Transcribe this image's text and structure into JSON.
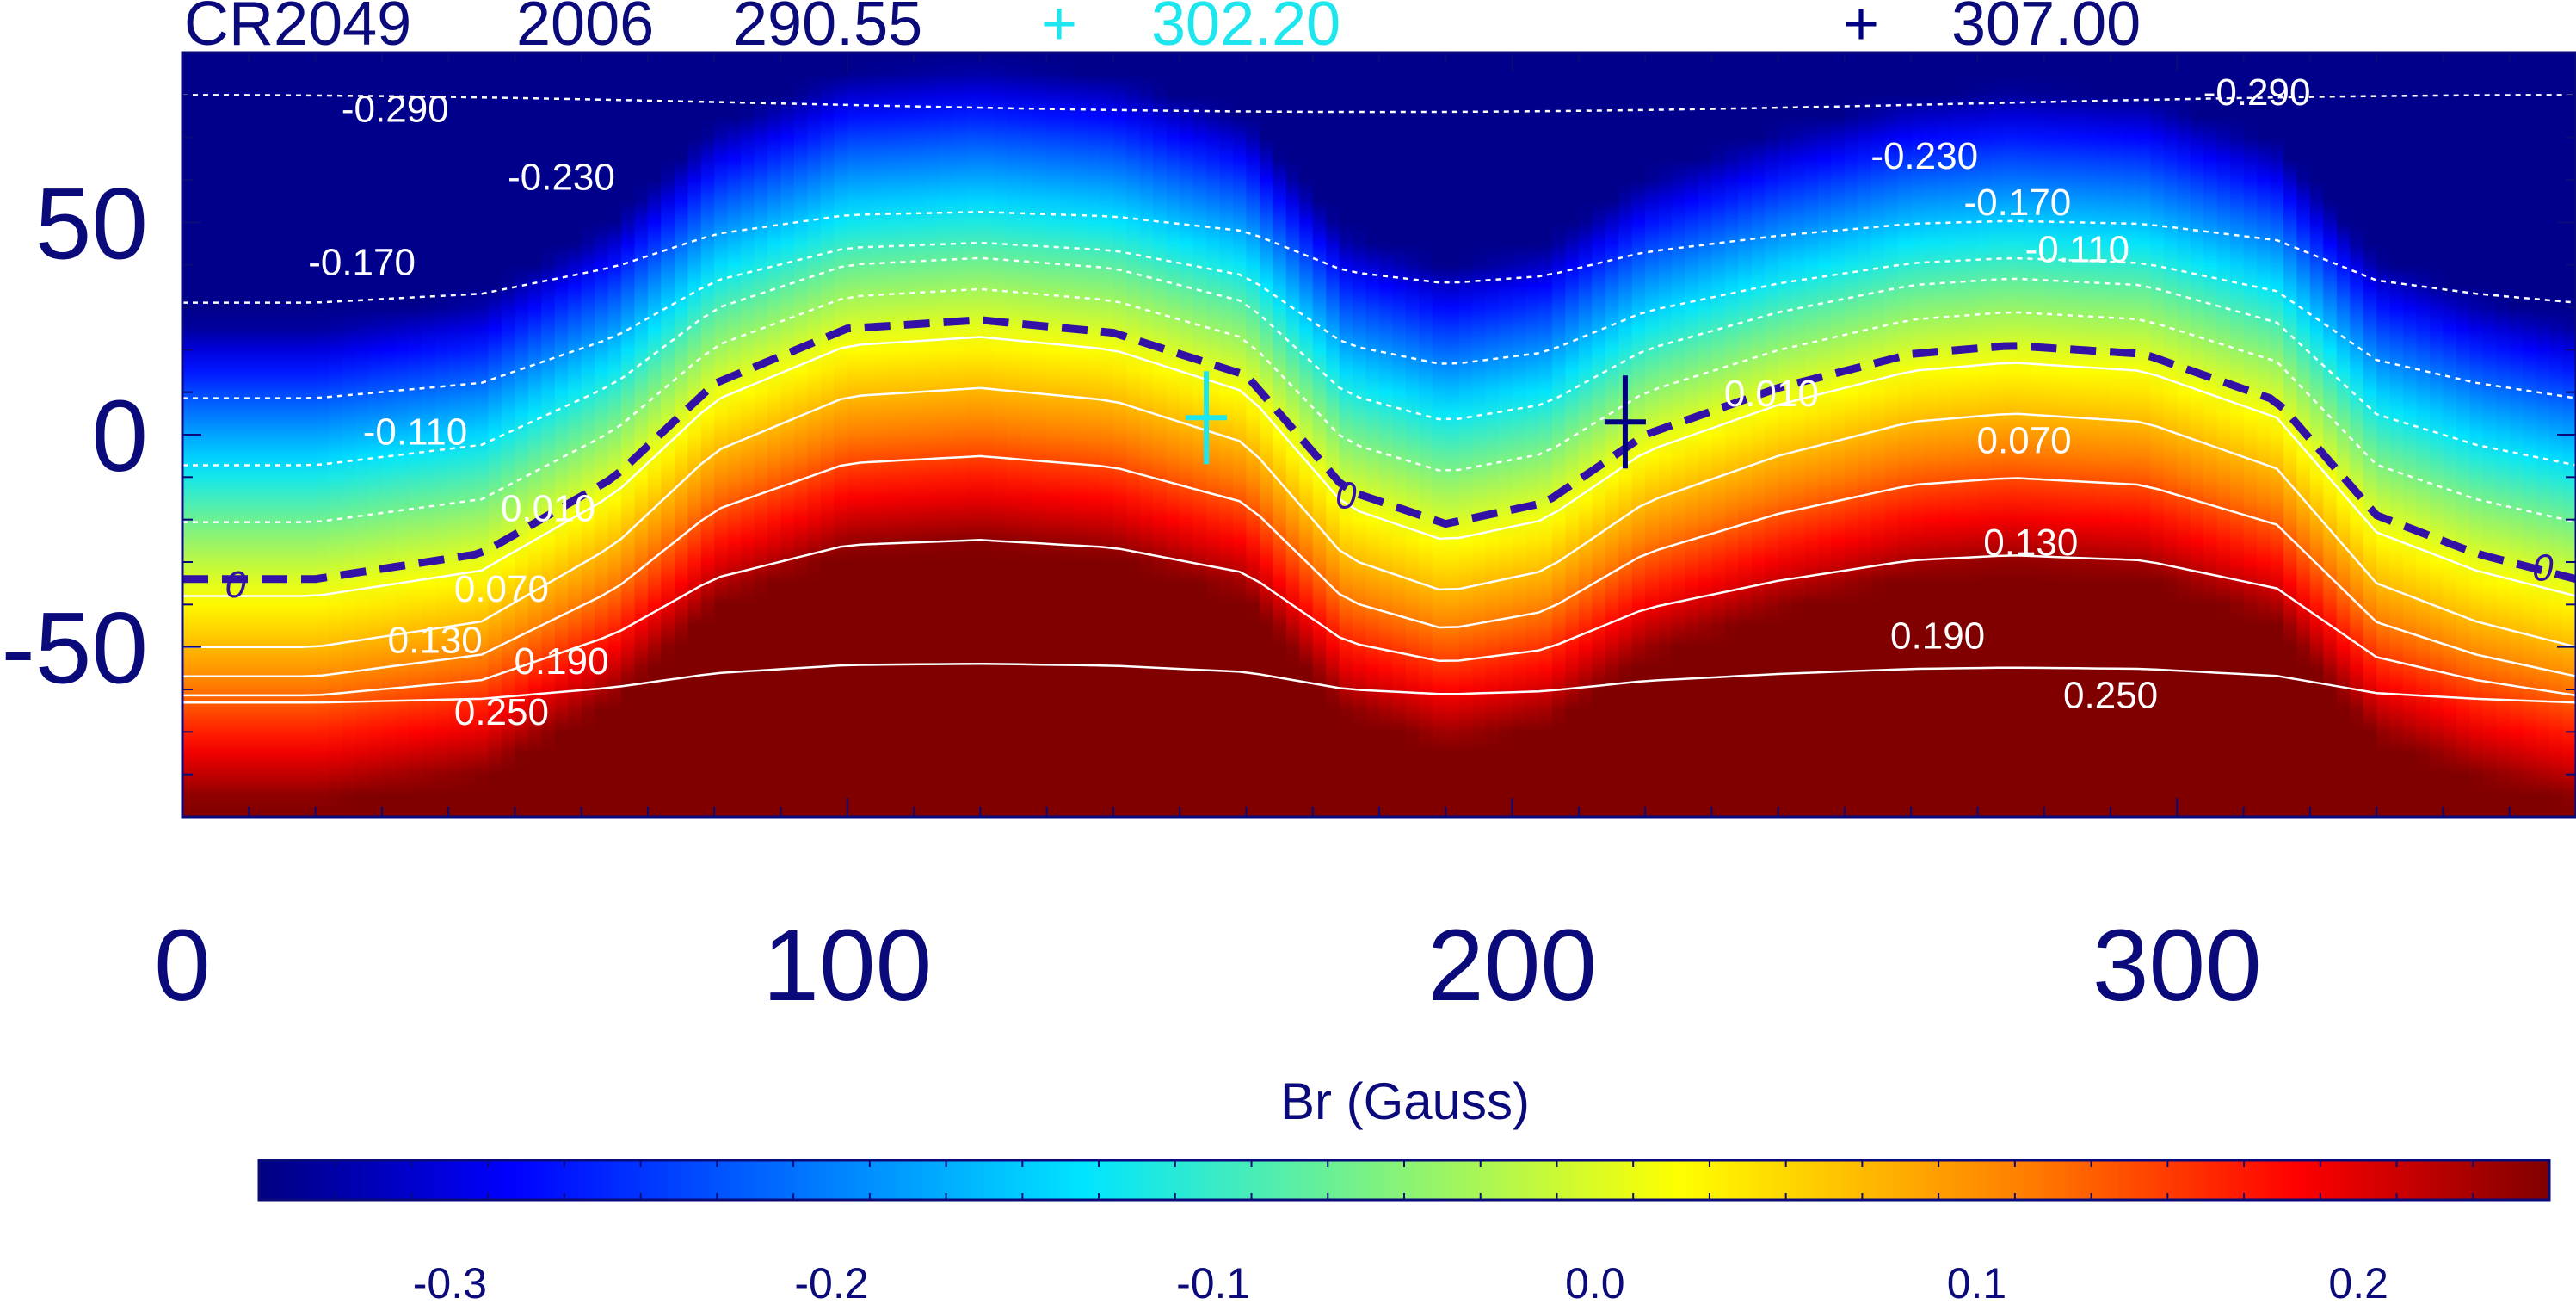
{
  "header": {
    "carrington": "CR2049",
    "year": "2006",
    "value1": "290.55",
    "marker1_symbol": "+",
    "value2": "302.20",
    "marker2_symbol": "+",
    "value3": "307.00"
  },
  "colors": {
    "axis": "#0a0a7a",
    "cyan": "#1ee6ee",
    "navy": "#000080",
    "neutral_line": "#3311a6",
    "contour": "#ffffff",
    "colormap": [
      [
        0.0,
        "#000080"
      ],
      [
        0.11,
        "#0000ff"
      ],
      [
        0.36,
        "#00e5ff"
      ],
      [
        0.62,
        "#ffff00"
      ],
      [
        0.77,
        "#ff7f00"
      ],
      [
        0.89,
        "#ff0000"
      ],
      [
        1.0,
        "#800000"
      ]
    ]
  },
  "chart_data": [
    {
      "type": "heatmap",
      "title": "",
      "xlabel": "",
      "ylabel": "",
      "xlim": [
        0,
        360
      ],
      "ylim": [
        -90,
        90
      ],
      "xticks": [
        0,
        100,
        200,
        300
      ],
      "yticks": [
        50,
        0,
        -50
      ],
      "field_range": [
        -0.35,
        0.25
      ],
      "neutral_line": {
        "label": "0",
        "style": "dashed",
        "x": [
          0,
          20,
          45,
          65,
          80,
          100,
          120,
          140,
          160,
          175,
          190,
          205,
          220,
          240,
          260,
          275,
          295,
          315,
          330,
          345,
          360
        ],
        "y": [
          -34,
          -34,
          -28,
          -10,
          12,
          25,
          27,
          24,
          14,
          -13,
          -21,
          -16,
          0,
          11,
          19,
          21,
          19,
          8,
          -19,
          -28,
          -34
        ]
      },
      "contour_labels": [
        {
          "label": "-0.290",
          "x": 32,
          "y": 76
        },
        {
          "label": "-0.290",
          "x": 312,
          "y": 80
        },
        {
          "label": "-0.230",
          "x": 57,
          "y": 60
        },
        {
          "label": "-0.230",
          "x": 262,
          "y": 65
        },
        {
          "label": "-0.170",
          "x": 27,
          "y": 40
        },
        {
          "label": "-0.170",
          "x": 276,
          "y": 54
        },
        {
          "label": "-0.110",
          "x": 35,
          "y": 0
        },
        {
          "label": "-0.110",
          "x": 285,
          "y": 43
        },
        {
          "label": "0.010",
          "x": 55,
          "y": -18
        },
        {
          "label": "0.010",
          "x": 239,
          "y": 9
        },
        {
          "label": "0.070",
          "x": 48,
          "y": -37
        },
        {
          "label": "0.070",
          "x": 277,
          "y": -2
        },
        {
          "label": "0.130",
          "x": 38,
          "y": -49
        },
        {
          "label": "0.130",
          "x": 278,
          "y": -26
        },
        {
          "label": "0.190",
          "x": 57,
          "y": -54
        },
        {
          "label": "0.190",
          "x": 264,
          "y": -48
        },
        {
          "label": "0.250",
          "x": 48,
          "y": -66
        },
        {
          "label": "0.250",
          "x": 290,
          "y": -62
        }
      ],
      "zero_labels": [
        {
          "label": "0",
          "x": 8,
          "y": -36
        },
        {
          "label": "0",
          "x": 175,
          "y": -15
        },
        {
          "label": "0",
          "x": 355,
          "y": -32
        }
      ],
      "markers": [
        {
          "name": "302.20",
          "color": "cyan",
          "x": 154,
          "y": 4
        },
        {
          "name": "307.00",
          "color": "navy",
          "x": 217,
          "y": 3
        }
      ]
    },
    {
      "type": "colorbar",
      "title": "Br (Gauss)",
      "range": [
        -0.35,
        0.25
      ],
      "ticks": [
        "-0.3",
        "-0.2",
        "-0.1",
        "0.0",
        "0.1",
        "0.2"
      ],
      "tick_values": [
        -0.3,
        -0.2,
        -0.1,
        0.0,
        0.1,
        0.2
      ]
    }
  ]
}
